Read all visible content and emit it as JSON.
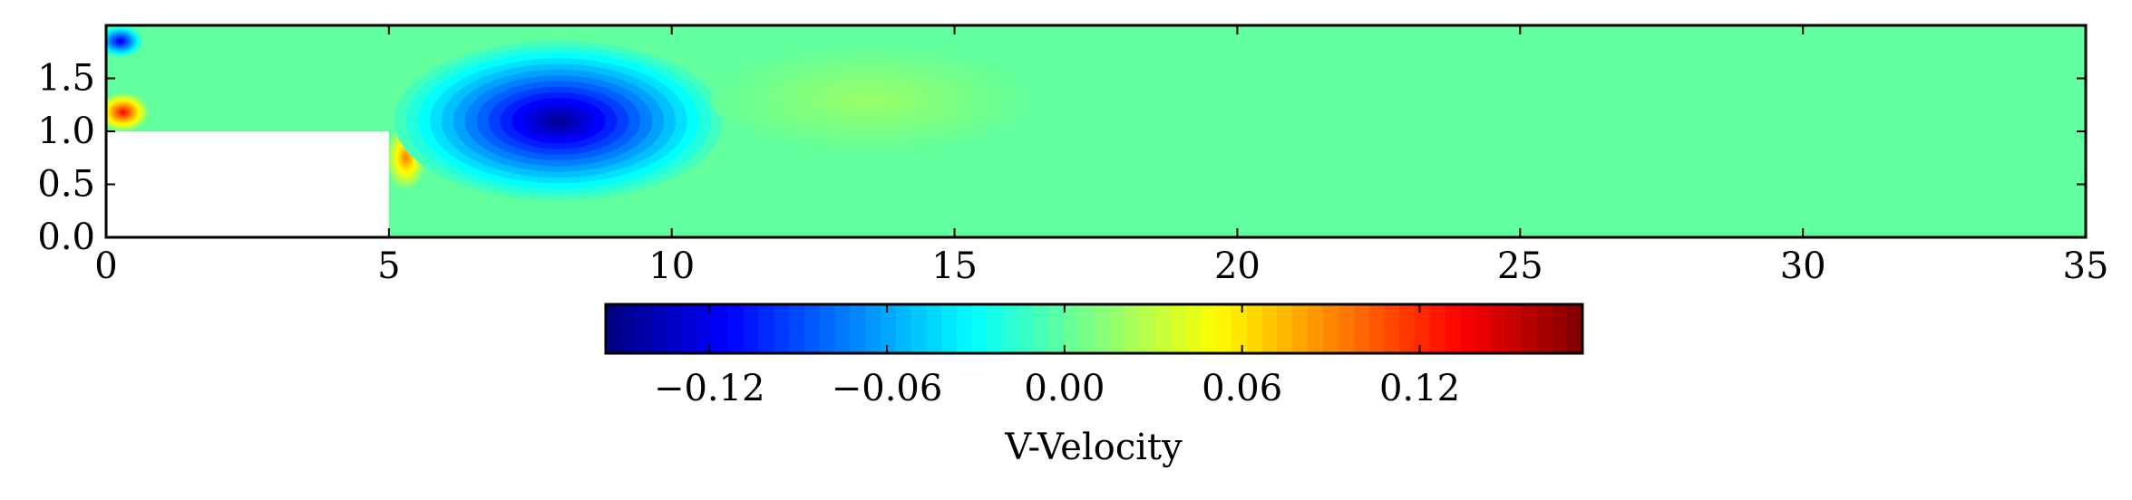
{
  "chart_data": {
    "type": "heatmap",
    "title": "",
    "xlabel": "",
    "ylabel": "",
    "xlim": [
      0,
      35
    ],
    "ylim": [
      0,
      2
    ],
    "x_ticks": [
      "0",
      "5",
      "10",
      "15",
      "20",
      "25",
      "30",
      "35"
    ],
    "y_ticks": [
      "0.0",
      "0.5",
      "1.0",
      "1.5"
    ],
    "x_tick_values": [
      0,
      5,
      10,
      15,
      20,
      25,
      30,
      35
    ],
    "y_tick_values": [
      0,
      0.5,
      1.0,
      1.5
    ],
    "grid": false,
    "colormap": "jet",
    "background_value": 0.0,
    "step_obstacle": {
      "x": [
        0,
        5
      ],
      "y": [
        0,
        1.0
      ]
    },
    "features": [
      {
        "name": "inlet-top-corner-vortex",
        "x": 0.25,
        "y": 1.85,
        "rx": 0.4,
        "ry": 0.15,
        "v": -0.12
      },
      {
        "name": "inlet-step-edge-jet",
        "x": 0.3,
        "y": 1.18,
        "rx": 0.45,
        "ry": 0.18,
        "v": 0.13
      },
      {
        "name": "step-corner-upwash",
        "x": 5.3,
        "y": 0.75,
        "rx": 0.35,
        "ry": 0.3,
        "v": 0.09
      },
      {
        "name": "main-recirculation-downwash",
        "x": 8.0,
        "y": 1.1,
        "rx": 2.9,
        "ry": 0.75,
        "v": -0.145
      },
      {
        "name": "downstream-weak-upwash",
        "x": 13.5,
        "y": 1.3,
        "rx": 2.8,
        "ry": 0.5,
        "v": 0.018
      }
    ],
    "colorbar": {
      "label": "V-Velocity",
      "ticks": [
        "−0.12",
        "−0.06",
        "0.00",
        "0.06",
        "0.12"
      ],
      "tick_values": [
        -0.12,
        -0.06,
        0.0,
        0.06,
        0.12
      ],
      "range": [
        -0.155,
        0.175
      ]
    }
  }
}
